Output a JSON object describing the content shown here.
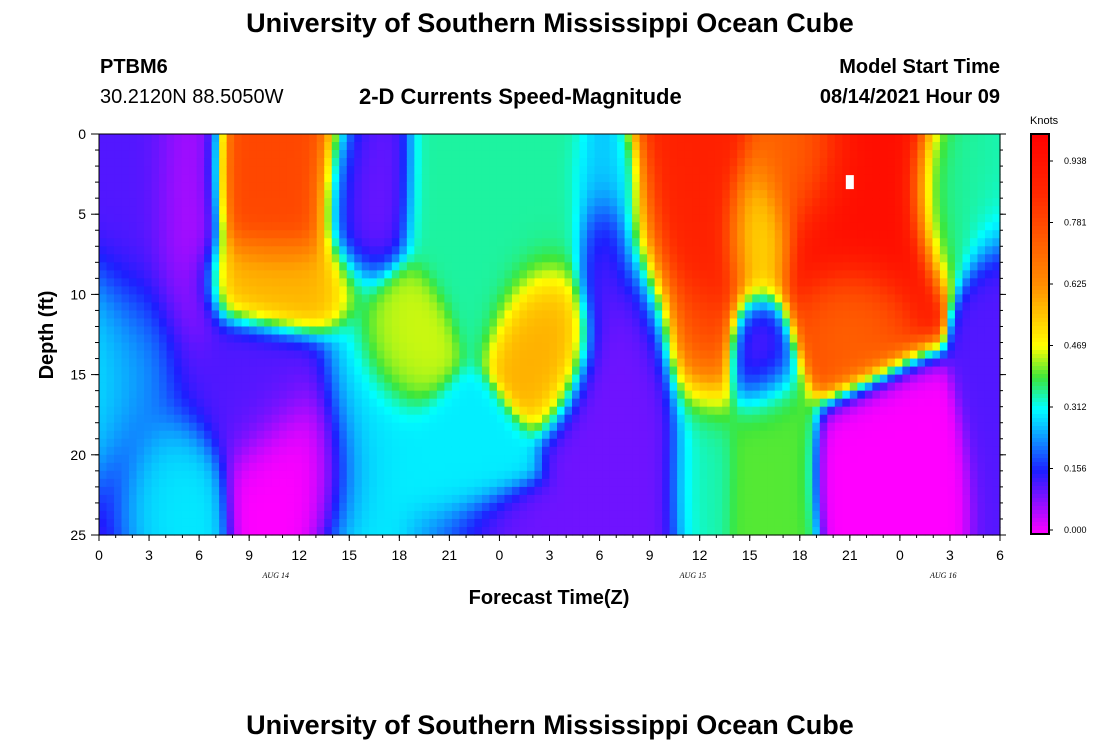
{
  "page": {
    "title_top": "University of Southern Mississippi Ocean Cube",
    "title_bottom": "University of Southern Mississippi Ocean Cube",
    "station_id": "PTBM6",
    "station_coords": "30.2120N  88.5050W",
    "plot_title": "2-D Currents Speed-Magnitude",
    "model_start_label": "Model Start Time",
    "model_start_value": "08/14/2021 Hour 09"
  },
  "colors": {
    "magenta": "#ff00ff",
    "blue": "#1a1aff",
    "cyan": "#00ffff",
    "green": "#33dd33",
    "yellow": "#ffff00",
    "orange": "#ff8800",
    "red": "#ff2200",
    "marker": "#ffffff"
  },
  "chart_data": {
    "type": "heatmap",
    "xlabel": "Forecast Time(Z)",
    "ylabel": "Depth (ft)",
    "x_ticks": [
      "0",
      "3",
      "6",
      "9",
      "12",
      "15",
      "18",
      "21",
      "0",
      "3",
      "6",
      "9",
      "12",
      "15",
      "18",
      "21",
      "0",
      "3",
      "6"
    ],
    "x_range_hours": [
      0,
      54
    ],
    "date_labels": [
      {
        "text": "AUG 14",
        "hour": 11
      },
      {
        "text": "AUG 15",
        "hour": 36
      },
      {
        "text": "AUG 16",
        "hour": 60
      }
    ],
    "y_ticks": [
      "0",
      "5",
      "10",
      "15",
      "20",
      "25"
    ],
    "y_range_ft": [
      0,
      25
    ],
    "colorbar": {
      "title": "Knots",
      "labels": [
        "0.938",
        "0.781",
        "0.625",
        "0.469",
        "0.312",
        "0.156",
        "0.000"
      ],
      "range": [
        0,
        1.0
      ]
    },
    "marker_point": {
      "hour": 45,
      "depth_ft": 3
    },
    "features": [
      {
        "hour": 2.5,
        "depth": 3,
        "value": 0.12,
        "sx": 2.2,
        "sy": 12
      },
      {
        "hour": 5,
        "depth": 5,
        "value": 0.05,
        "sx": 1.5,
        "sy": 8
      },
      {
        "hour": 1,
        "depth": 14,
        "value": 0.3,
        "sx": 3,
        "sy": 4
      },
      {
        "hour": 4.5,
        "depth": 22,
        "value": 0.3,
        "sx": 1.8,
        "sy": 3.5
      },
      {
        "hour": 11,
        "depth": 3,
        "value": 0.78,
        "sx": 2.5,
        "sy": 4.5
      },
      {
        "hour": 11,
        "depth": 9,
        "value": 0.55,
        "sx": 3,
        "sy": 2
      },
      {
        "hour": 12,
        "depth": 21,
        "value": 0.0,
        "sx": 2.6,
        "sy": 3.5
      },
      {
        "hour": 9,
        "depth": 16,
        "value": 0.12,
        "sx": 3,
        "sy": 3
      },
      {
        "hour": 15.5,
        "depth": 4,
        "value": 0.1,
        "sx": 1.6,
        "sy": 3.5
      },
      {
        "hour": 18,
        "depth": 13,
        "value": 0.45,
        "sx": 1.5,
        "sy": 2.5
      },
      {
        "hour": 16,
        "depth": 21,
        "value": 0.3,
        "sx": 2,
        "sy": 6
      },
      {
        "hour": 21,
        "depth": 22,
        "value": 0.3,
        "sx": 2.5,
        "sy": 3
      },
      {
        "hour": 24,
        "depth": 24.5,
        "value": 0.1,
        "sx": 3,
        "sy": 1.5
      },
      {
        "hour": 27,
        "depth": 12,
        "value": 0.58,
        "sx": 1.6,
        "sy": 3
      },
      {
        "hour": 26,
        "depth": 5,
        "value": 0.35,
        "sx": 4,
        "sy": 4
      },
      {
        "hour": 30,
        "depth": 3,
        "value": 0.3,
        "sx": 1.2,
        "sy": 2
      },
      {
        "hour": 32,
        "depth": 18,
        "value": 0.1,
        "sx": 2.5,
        "sy": 7
      },
      {
        "hour": 30,
        "depth": 7,
        "value": 0.1,
        "sx": 1,
        "sy": 4
      },
      {
        "hour": 36,
        "depth": 5,
        "value": 0.88,
        "sx": 2.2,
        "sy": 6
      },
      {
        "hour": 36,
        "depth": 13,
        "value": 0.8,
        "sx": 1.3,
        "sy": 3
      },
      {
        "hour": 36,
        "depth": 20,
        "value": 0.35,
        "sx": 1.3,
        "sy": 5
      },
      {
        "hour": 39.5,
        "depth": 13.5,
        "value": 0.1,
        "sx": 1.3,
        "sy": 2.5
      },
      {
        "hour": 39.5,
        "depth": 6,
        "value": 0.5,
        "sx": 1.5,
        "sy": 3
      },
      {
        "hour": 40,
        "depth": 21,
        "value": 0.4,
        "sx": 1.5,
        "sy": 5
      },
      {
        "hour": 45,
        "depth": 5,
        "value": 0.95,
        "sx": 3,
        "sy": 5
      },
      {
        "hour": 45,
        "depth": 11,
        "value": 0.7,
        "sx": 2,
        "sy": 2.5
      },
      {
        "hour": 42,
        "depth": 2,
        "value": 0.7,
        "sx": 2,
        "sy": 3
      },
      {
        "hour": 48,
        "depth": 21,
        "value": 0.0,
        "sx": 2.5,
        "sy": 3.5
      },
      {
        "hour": 53.5,
        "depth": 15,
        "value": 0.12,
        "sx": 1.2,
        "sy": 6
      },
      {
        "hour": 52,
        "depth": 4,
        "value": 0.35,
        "sx": 2,
        "sy": 3
      }
    ]
  }
}
